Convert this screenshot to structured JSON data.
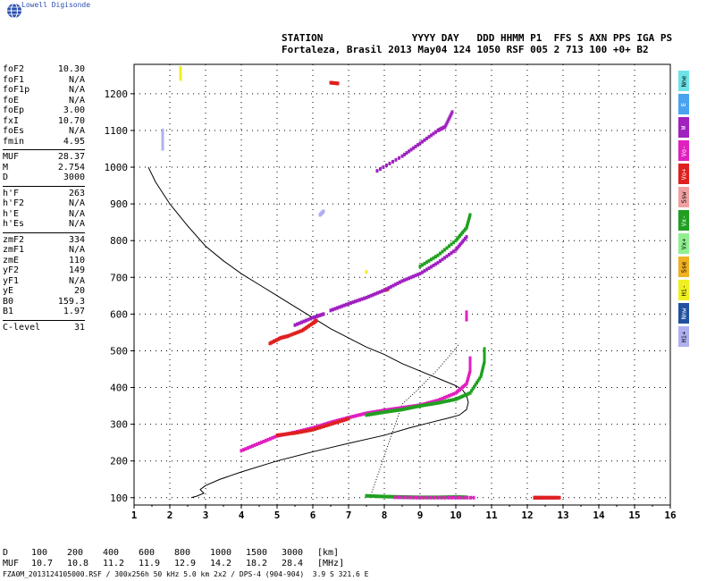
{
  "app": {
    "logo_text": "Lowell Digisonde",
    "logo_icon": "globe-icon"
  },
  "header": {
    "line1": "STATION               YYYY DAY   DDD HHMM P1  FFS S AXN PPS IGA PS",
    "line2": "Fortaleza, Brasil 2013 May04 124 1050 RSF 005 2 713 100 +0+ B2"
  },
  "params": [
    {
      "k": "foF2",
      "v": "10.30"
    },
    {
      "k": "foF1",
      "v": "N/A"
    },
    {
      "k": "foF1p",
      "v": "N/A"
    },
    {
      "k": "foE",
      "v": "N/A"
    },
    {
      "k": "foEp",
      "v": "3.00"
    },
    {
      "k": "fxI",
      "v": "10.70"
    },
    {
      "k": "foEs",
      "v": "N/A"
    },
    {
      "k": "fmin",
      "v": "4.95"
    },
    {
      "sep": true
    },
    {
      "k": "MUF",
      "v": "28.37"
    },
    {
      "k": "M",
      "v": "2.754"
    },
    {
      "k": "D",
      "v": "3000"
    },
    {
      "sep": true
    },
    {
      "k": "h'F",
      "v": "263"
    },
    {
      "k": "h'F2",
      "v": "N/A"
    },
    {
      "k": "h'E",
      "v": "N/A"
    },
    {
      "k": "h'Es",
      "v": "N/A"
    },
    {
      "sep": true
    },
    {
      "k": "zmF2",
      "v": "334"
    },
    {
      "k": "zmF1",
      "v": "N/A"
    },
    {
      "k": "zmE",
      "v": "110"
    },
    {
      "k": "yF2",
      "v": "149"
    },
    {
      "k": "yF1",
      "v": "N/A"
    },
    {
      "k": "yE",
      "v": "20"
    },
    {
      "k": "B0",
      "v": "159.3"
    },
    {
      "k": "B1",
      "v": "1.97"
    },
    {
      "sep": true
    },
    {
      "k": "C-level",
      "v": "31"
    }
  ],
  "legend": [
    {
      "label": "Nne",
      "color": "#6de3e8"
    },
    {
      "label": "E",
      "color": "#4aa3f0"
    },
    {
      "label": "W",
      "color": "#a020c0"
    },
    {
      "label": "Vo-",
      "color": "#e020c0"
    },
    {
      "label": "Vo+",
      "color": "#e02020"
    },
    {
      "label": "Ssw",
      "color": "#f0a0a0"
    },
    {
      "label": "Vx-",
      "color": "#20a020"
    },
    {
      "label": "Vx+",
      "color": "#90f090"
    },
    {
      "label": "Sse",
      "color": "#f0b020"
    },
    {
      "label": "Hi-",
      "color": "#f0f020"
    },
    {
      "label": "Nnw",
      "color": "#2050a0"
    },
    {
      "label": "Hi+",
      "color": "#b0b0f0"
    }
  ],
  "muf_table": {
    "d_label": "D",
    "d_values": [
      "100",
      "200",
      "400",
      "600",
      "800",
      "1000",
      "1500",
      "3000"
    ],
    "d_unit": "[km]",
    "muf_label": "MUF",
    "muf_values": [
      "10.7",
      "10.8",
      "11.2",
      "11.9",
      "12.9",
      "14.2",
      "18.2",
      "28.4"
    ],
    "muf_unit": "[MHz]"
  },
  "footer": "FZA0M_2013124105000.RSF / 300x256h 50 kHz 5.0 km 2x2 / DPS-4 (904-904)  3.9 S 321.6 E",
  "chart_data": {
    "type": "scatter",
    "xlim": [
      1,
      16
    ],
    "ylim": [
      80,
      1280
    ],
    "xticks": [
      "1",
      "2",
      "3",
      "4",
      "5",
      "6",
      "7",
      "8",
      "9",
      "10",
      "11",
      "12",
      "13",
      "14",
      "15",
      "16"
    ],
    "yticks": [
      "100",
      "200",
      "300",
      "400",
      "500",
      "600",
      "700",
      "800",
      "900",
      "1000",
      "1100",
      "1200"
    ],
    "grid": "dotted",
    "profile_curve": [
      [
        1.4,
        1000
      ],
      [
        1.6,
        960
      ],
      [
        2,
        900
      ],
      [
        2.5,
        840
      ],
      [
        3,
        785
      ],
      [
        3.5,
        745
      ],
      [
        4,
        710
      ],
      [
        4.5,
        680
      ],
      [
        5,
        650
      ],
      [
        5.5,
        620
      ],
      [
        6,
        590
      ],
      [
        6.5,
        560
      ],
      [
        7,
        535
      ],
      [
        7.5,
        510
      ],
      [
        8,
        490
      ],
      [
        8.5,
        465
      ],
      [
        9,
        445
      ],
      [
        9.5,
        425
      ],
      [
        10,
        405
      ],
      [
        10.2,
        392
      ],
      [
        10.3,
        378
      ],
      [
        10.35,
        360
      ],
      [
        10.3,
        340
      ],
      [
        10.1,
        325
      ],
      [
        9.8,
        317
      ],
      [
        9.3,
        305
      ],
      [
        8.7,
        290
      ],
      [
        8,
        270
      ],
      [
        7,
        248
      ],
      [
        6,
        225
      ],
      [
        5,
        200
      ],
      [
        4,
        170
      ],
      [
        3.4,
        150
      ],
      [
        3,
        133
      ],
      [
        2.85,
        122
      ],
      [
        2.95,
        112
      ],
      [
        2.75,
        104
      ],
      [
        2.6,
        100
      ]
    ],
    "dotted_curve": [
      [
        7.6,
        100
      ],
      [
        8.5,
        355
      ],
      [
        9,
        400
      ],
      [
        9.5,
        450
      ],
      [
        9.9,
        495
      ],
      [
        10.1,
        520
      ]
    ],
    "series": [
      {
        "color": "#e020c0",
        "points": [
          [
            4,
            228
          ],
          [
            4.5,
            248
          ],
          [
            5,
            268
          ],
          [
            5.5,
            278
          ],
          [
            6,
            290
          ],
          [
            6.5,
            305
          ],
          [
            7,
            318
          ],
          [
            7.5,
            330
          ],
          [
            8,
            338
          ],
          [
            8.5,
            345
          ],
          [
            9,
            352
          ],
          [
            9.5,
            365
          ],
          [
            10,
            385
          ],
          [
            10.3,
            410
          ],
          [
            10.4,
            445
          ],
          [
            10.4,
            480
          ],
          [
            10.3,
            585
          ],
          [
            10.3,
            605
          ]
        ]
      },
      {
        "color": "#e02020",
        "points": [
          [
            5,
            270
          ],
          [
            5.5,
            276
          ],
          [
            6,
            285
          ],
          [
            6.5,
            300
          ],
          [
            7,
            315
          ],
          [
            4.8,
            520
          ],
          [
            5.1,
            535
          ],
          [
            5.3,
            540
          ],
          [
            5.7,
            555
          ],
          [
            6,
            575
          ],
          [
            6.1,
            582
          ],
          [
            8,
            665
          ],
          [
            8.1,
            668
          ]
        ]
      },
      {
        "color": "#20a020",
        "points": [
          [
            7.5,
            325
          ],
          [
            8,
            333
          ],
          [
            8.5,
            340
          ],
          [
            9,
            350
          ],
          [
            9.5,
            358
          ],
          [
            10,
            368
          ],
          [
            10.4,
            385
          ],
          [
            10.7,
            430
          ],
          [
            10.8,
            470
          ],
          [
            10.8,
            505
          ],
          [
            9,
            730
          ],
          [
            9.5,
            760
          ],
          [
            10,
            800
          ],
          [
            10.3,
            835
          ],
          [
            10.4,
            870
          ]
        ]
      },
      {
        "color": "#a020c0",
        "points": [
          [
            6.5,
            610
          ],
          [
            7,
            628
          ],
          [
            7.5,
            645
          ],
          [
            8,
            665
          ],
          [
            8.5,
            690
          ],
          [
            9,
            710
          ],
          [
            9.5,
            740
          ],
          [
            10,
            775
          ],
          [
            10.3,
            810
          ],
          [
            7.8,
            990
          ],
          [
            8.5,
            1030
          ],
          [
            9,
            1065
          ],
          [
            9.5,
            1100
          ],
          [
            9.7,
            1110
          ],
          [
            9.9,
            1150
          ],
          [
            5.5,
            570
          ],
          [
            6,
            590
          ],
          [
            6.3,
            600
          ]
        ]
      },
      {
        "color": "#20a020",
        "points": [
          [
            7.5,
            105
          ],
          [
            8,
            103
          ],
          [
            8.5,
            102
          ],
          [
            9,
            101
          ],
          [
            9.5,
            101
          ],
          [
            10,
            102
          ],
          [
            10.3,
            101
          ]
        ]
      },
      {
        "color": "#e020c0",
        "points": [
          [
            8.3,
            101
          ],
          [
            9,
            100
          ],
          [
            9.8,
            100
          ],
          [
            10.5,
            100
          ],
          [
            12.2,
            100
          ],
          [
            12.8,
            100
          ]
        ]
      },
      {
        "color": "#e02020",
        "points": [
          [
            12.2,
            100
          ],
          [
            12.5,
            100
          ],
          [
            12.9,
            100
          ],
          [
            6.5,
            1230
          ],
          [
            6.7,
            1228
          ]
        ]
      },
      {
        "color": "#f0f020",
        "points": [
          [
            2.3,
            1270
          ],
          [
            2.3,
            1240
          ],
          [
            7.5,
            715
          ]
        ]
      },
      {
        "color": "#b0b0f0",
        "points": [
          [
            1.8,
            1100
          ],
          [
            1.8,
            1050
          ],
          [
            6.2,
            870
          ],
          [
            6.3,
            880
          ]
        ]
      }
    ]
  }
}
